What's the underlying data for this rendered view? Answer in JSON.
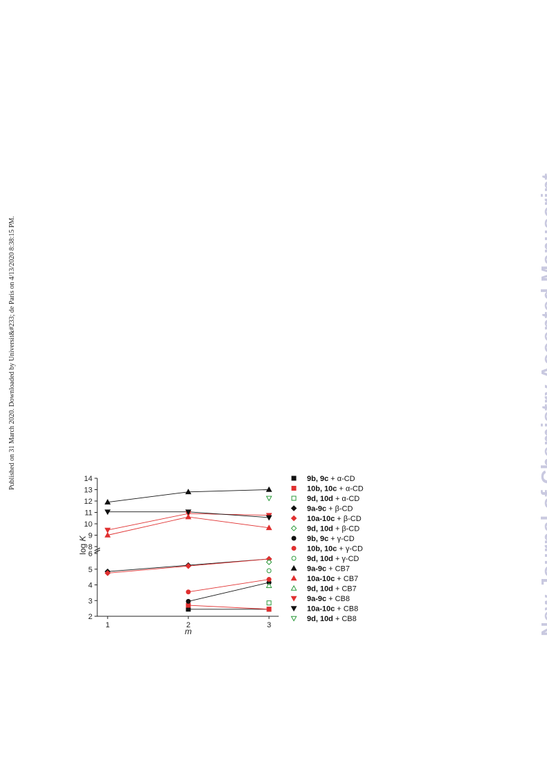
{
  "side_note": "Published on 31 March 2020. Downloaded by Universit&#233; de Paris on 4/13/2020 8:38:15 PM.",
  "watermark": "New Journal of Chemistry Accepted Manuscript",
  "chart_data": {
    "type": "line",
    "xlabel": "m",
    "ylabel": "log K",
    "x_ticks": [
      "1",
      "2",
      "3"
    ],
    "y_ticks_lower": [
      "2",
      "3",
      "4",
      "5",
      "6"
    ],
    "y_ticks_upper": [
      "8",
      "9",
      "10",
      "11",
      "12",
      "13",
      "14"
    ],
    "xlim": [
      1,
      3
    ],
    "ylim_lower": [
      2,
      6
    ],
    "ylim_upper": [
      8,
      14
    ],
    "axis_break": "between 6 and 8",
    "legend_position": "right",
    "series": [
      {
        "name_bold": "9b, 9c",
        "name_rest": " + α-CD",
        "color": "#111111",
        "marker": "square",
        "filled": true,
        "points": [
          [
            2,
            2.45
          ],
          [
            3,
            2.45
          ]
        ]
      },
      {
        "name_bold": "10b, 10c",
        "name_rest": " + α-CD",
        "color": "#e03030",
        "marker": "square",
        "filled": true,
        "points": [
          [
            2,
            2.7
          ],
          [
            3,
            2.45
          ]
        ]
      },
      {
        "name_bold": "9d, 10d",
        "name_rest": " + α-CD",
        "color": "#2a9a3a",
        "marker": "square",
        "filled": false,
        "points": [
          [
            3,
            2.85
          ]
        ]
      },
      {
        "name_bold": "9a-9c",
        "name_rest": " + β-CD",
        "color": "#111111",
        "marker": "diamond",
        "filled": true,
        "points": [
          [
            1,
            4.85
          ],
          [
            2,
            5.25
          ],
          [
            3,
            5.65
          ]
        ]
      },
      {
        "name_bold": "10a-10c",
        "name_rest": " + β-CD",
        "color": "#e03030",
        "marker": "diamond",
        "filled": true,
        "points": [
          [
            1,
            4.75
          ],
          [
            2,
            5.2
          ],
          [
            3,
            5.65
          ]
        ]
      },
      {
        "name_bold": "9d, 10d",
        "name_rest": " + β-CD",
        "color": "#2a9a3a",
        "marker": "diamond",
        "filled": false,
        "points": [
          [
            3,
            5.45
          ]
        ]
      },
      {
        "name_bold": "9b, 9c",
        "name_rest": " + γ-CD",
        "color": "#111111",
        "marker": "circle",
        "filled": true,
        "points": [
          [
            2,
            2.95
          ],
          [
            3,
            4.15
          ]
        ]
      },
      {
        "name_bold": "10b, 10c",
        "name_rest": " + γ-CD",
        "color": "#e03030",
        "marker": "circle",
        "filled": true,
        "points": [
          [
            2,
            3.55
          ],
          [
            3,
            4.35
          ]
        ]
      },
      {
        "name_bold": "9d, 10d",
        "name_rest": " + γ-CD",
        "color": "#2a9a3a",
        "marker": "circle",
        "filled": false,
        "points": [
          [
            3,
            4.9
          ]
        ]
      },
      {
        "name_bold": "9a-9c",
        "name_rest": " + CB7",
        "color": "#111111",
        "marker": "triangle-up",
        "filled": true,
        "points": [
          [
            1,
            11.9
          ],
          [
            2,
            12.8
          ],
          [
            3,
            13.0
          ]
        ]
      },
      {
        "name_bold": "10a-10c",
        "name_rest": " + CB7",
        "color": "#e03030",
        "marker": "triangle-up",
        "filled": true,
        "points": [
          [
            1,
            9.0
          ],
          [
            2,
            10.6
          ],
          [
            3,
            9.65
          ]
        ]
      },
      {
        "name_bold": "9d, 10d",
        "name_rest": " + CB7",
        "color": "#2a9a3a",
        "marker": "triangle-up",
        "filled": false,
        "points": [
          [
            3,
            3.95
          ]
        ]
      },
      {
        "name_bold": "9a-9c",
        "name_rest": " + CB8",
        "color": "#e03030",
        "marker": "triangle-down",
        "filled": true,
        "points": [
          [
            1,
            9.45
          ],
          [
            2,
            10.9
          ],
          [
            3,
            10.75
          ]
        ]
      },
      {
        "name_bold": "10a-10c",
        "name_rest": " + CB8",
        "color": "#111111",
        "marker": "triangle-down",
        "filled": true,
        "points": [
          [
            1,
            11.05
          ],
          [
            2,
            11.05
          ],
          [
            3,
            10.55
          ]
        ]
      },
      {
        "name_bold": "9d, 10d",
        "name_rest": " + CB8",
        "color": "#2a9a3a",
        "marker": "triangle-down",
        "filled": false,
        "points": [
          [
            3,
            12.25
          ]
        ]
      }
    ]
  }
}
